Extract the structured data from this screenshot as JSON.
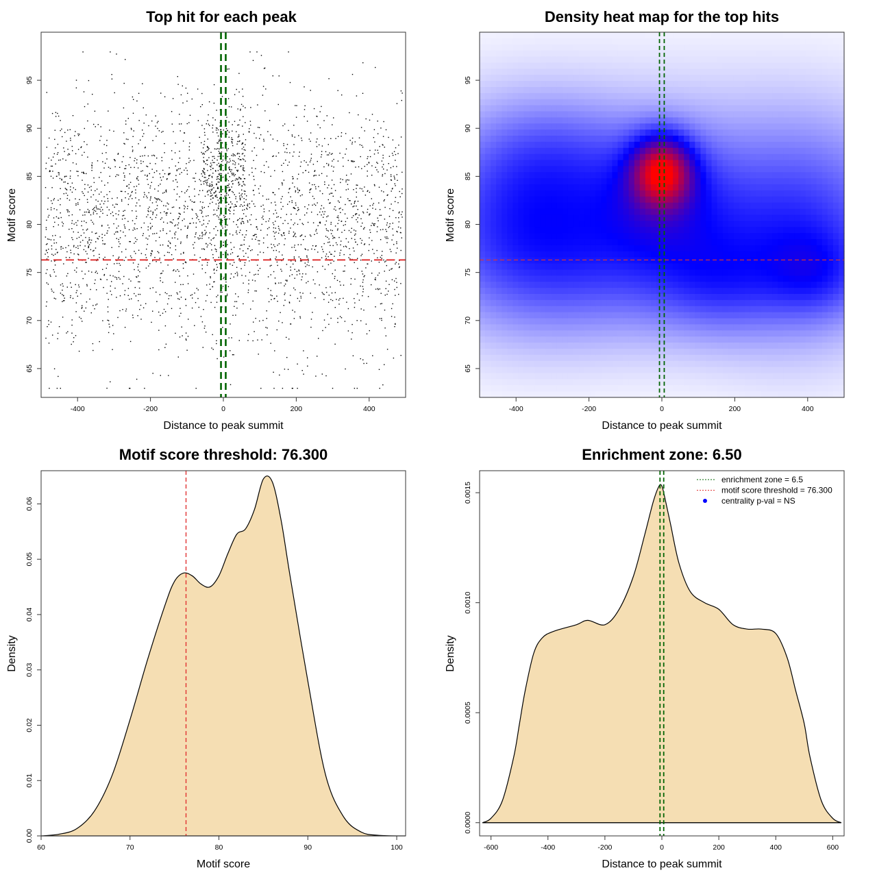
{
  "chart_data": [
    {
      "type": "scatter",
      "title": "Top hit for each peak",
      "xlabel": "Distance to peak summit",
      "ylabel": "Motif score",
      "xlim": [
        -500,
        500
      ],
      "ylim": [
        62,
        100
      ],
      "xticks": [
        -400,
        -200,
        0,
        200,
        400
      ],
      "yticks": [
        65,
        70,
        75,
        80,
        85,
        90,
        95
      ],
      "point_color": "#000000",
      "approx_points": 3000,
      "point_distribution": {
        "x_range": [
          -490,
          490
        ],
        "y_mean": 80,
        "y_sd": 6.5,
        "y_range": [
          63,
          98
        ],
        "central_peak": {
          "x_center": 0,
          "x_halfwidth": 60,
          "y_mean": 85.5,
          "y_sd": 3
        }
      },
      "reference_lines": [
        {
          "axis": "x",
          "value": -6.5,
          "color": "#006400",
          "style": "dashed"
        },
        {
          "axis": "x",
          "value": 6.5,
          "color": "#006400",
          "style": "dashed"
        },
        {
          "axis": "y",
          "value": 76.3,
          "color": "#e03131",
          "style": "dashed"
        }
      ]
    },
    {
      "type": "heatmap",
      "title": "Density heat map for the top hits",
      "xlabel": "Distance to peak summit",
      "ylabel": "Motif score",
      "xlim": [
        -500,
        500
      ],
      "ylim": [
        62,
        100
      ],
      "xticks": [
        -400,
        -200,
        0,
        200,
        400
      ],
      "yticks": [
        65,
        70,
        75,
        80,
        85,
        90,
        95
      ],
      "colors": [
        "#ffffff",
        "#0000ff",
        "#ff0000"
      ],
      "hotspot": {
        "x": 0,
        "y": 85.5
      },
      "blobs": [
        {
          "x": 0,
          "y": 85.5,
          "sx": 55,
          "sy": 2.4,
          "w": 1.6
        },
        {
          "x": 0,
          "y": 83,
          "sx": 120,
          "sy": 4.5,
          "w": 0.55
        },
        {
          "x": -380,
          "y": 80,
          "sx": 170,
          "sy": 6.5,
          "w": 0.5
        },
        {
          "x": 380,
          "y": 79,
          "sx": 170,
          "sy": 7,
          "w": 0.5
        },
        {
          "x": -100,
          "y": 76,
          "sx": 260,
          "sy": 5,
          "w": 0.35
        },
        {
          "x": 150,
          "y": 74,
          "sx": 120,
          "sy": 3.5,
          "w": 0.3
        },
        {
          "x": 420,
          "y": 75,
          "sx": 90,
          "sy": 3,
          "w": 0.35
        },
        {
          "x": 0,
          "y": 82,
          "sx": 500,
          "sy": 8,
          "w": 0.25
        },
        {
          "x": -300,
          "y": 87,
          "sx": 150,
          "sy": 4,
          "w": 0.25
        }
      ],
      "reference_lines": [
        {
          "axis": "x",
          "value": -6.5,
          "color": "#006400",
          "style": "dashed"
        },
        {
          "axis": "x",
          "value": 6.5,
          "color": "#006400",
          "style": "dashed"
        },
        {
          "axis": "y",
          "value": 76.3,
          "color": "#e03131",
          "style": "dashed"
        }
      ]
    },
    {
      "type": "area",
      "title": "Motif score threshold: 76.300",
      "xlabel": "Motif score",
      "ylabel": "Density",
      "xlim": [
        60,
        101
      ],
      "ylim": [
        0,
        0.066
      ],
      "xticks": [
        60,
        70,
        80,
        90,
        100
      ],
      "yticks": [
        0.0,
        0.01,
        0.02,
        0.03,
        0.04,
        0.05,
        0.06
      ],
      "ytick_labels": [
        "0.00",
        "0.01",
        "0.02",
        "0.03",
        "0.04",
        "0.05",
        "0.06"
      ],
      "fill": "#f5deb3",
      "x": [
        60,
        62,
        64,
        66,
        68,
        70,
        72,
        74,
        75,
        76,
        77,
        78,
        79,
        80,
        81,
        82,
        83,
        84,
        85,
        86,
        87,
        88,
        90,
        92,
        94,
        96,
        98,
        101
      ],
      "values": [
        0.0,
        0.0003,
        0.0013,
        0.0045,
        0.011,
        0.021,
        0.032,
        0.042,
        0.046,
        0.0475,
        0.047,
        0.0455,
        0.045,
        0.047,
        0.051,
        0.0545,
        0.0555,
        0.059,
        0.0645,
        0.064,
        0.057,
        0.047,
        0.028,
        0.011,
        0.0035,
        0.0007,
        0.0001,
        0.0
      ],
      "reference_lines": [
        {
          "axis": "x",
          "value": 76.3,
          "color": "#e03131",
          "style": "dashed"
        }
      ]
    },
    {
      "type": "area",
      "title": "Enrichment zone: 6.50",
      "xlabel": "Distance to peak summit",
      "ylabel": "Density",
      "xlim": [
        -640,
        640
      ],
      "ylim": [
        -6e-05,
        0.0016
      ],
      "xticks": [
        -600,
        -400,
        -200,
        0,
        200,
        400,
        600
      ],
      "yticks": [
        0.0,
        0.0005,
        0.001,
        0.0015
      ],
      "ytick_labels": [
        "0.0000",
        "0.0005",
        "0.0010",
        "0.0015"
      ],
      "fill": "#f5deb3",
      "x": [
        -630,
        -600,
        -560,
        -520,
        -500,
        -480,
        -450,
        -420,
        -380,
        -300,
        -260,
        -200,
        -150,
        -100,
        -60,
        -30,
        -10,
        0,
        10,
        30,
        60,
        100,
        150,
        200,
        250,
        300,
        350,
        400,
        440,
        470,
        500,
        520,
        560,
        600,
        630
      ],
      "values": [
        0.0,
        2e-05,
        0.0001,
        0.0003,
        0.00045,
        0.0006,
        0.00077,
        0.00084,
        0.00087,
        0.0009,
        0.00092,
        0.0009,
        0.00097,
        0.00112,
        0.00131,
        0.00146,
        0.00153,
        0.00153,
        0.00148,
        0.00136,
        0.00118,
        0.00105,
        0.001,
        0.00097,
        0.0009,
        0.00088,
        0.00088,
        0.00086,
        0.00075,
        0.0006,
        0.00045,
        0.0003,
        0.0001,
        2e-05,
        0.0
      ],
      "reference_lines": [
        {
          "axis": "x",
          "value": -6.5,
          "color": "#006400",
          "style": "dashed"
        },
        {
          "axis": "x",
          "value": 6.5,
          "color": "#006400",
          "style": "dashed"
        }
      ],
      "legend": {
        "placement": "top-right",
        "entries": [
          {
            "label": "enrichment zone = 6.5",
            "color": "#006400",
            "symbol": "dotted-line"
          },
          {
            "label": "motif score threshold = 76.300",
            "color": "#e03131",
            "symbol": "dotted-line"
          },
          {
            "label": "centrality p-val = NS",
            "color": "#0000ff",
            "symbol": "point"
          }
        ]
      }
    }
  ]
}
